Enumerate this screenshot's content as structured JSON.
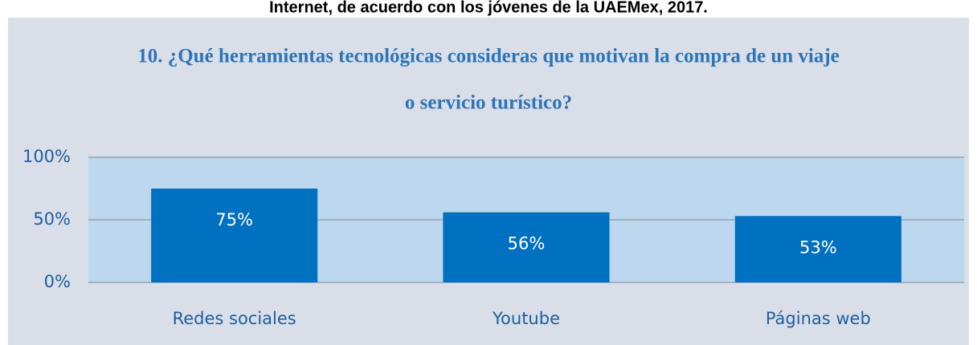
{
  "chart_data": {
    "type": "bar",
    "caption": "Internet, de acuerdo con los jóvenes de la UAEMex, 2017.",
    "title": [
      "10. ¿Qué herramientas tecnológicas consideras que motivan la compra de un viaje",
      "o servicio turístico?"
    ],
    "categories": [
      "Redes sociales",
      "Youtube",
      "Páginas web"
    ],
    "values": [
      75,
      56,
      53
    ],
    "value_labels": [
      "75%",
      "56%",
      "53%"
    ],
    "color": "#0070c0",
    "ylim": [
      0,
      100
    ],
    "yticks": [
      {
        "value": 0,
        "label": "0%"
      },
      {
        "value": 50,
        "label": "50%"
      },
      {
        "value": 100,
        "label": "100%"
      }
    ],
    "grid": true
  }
}
